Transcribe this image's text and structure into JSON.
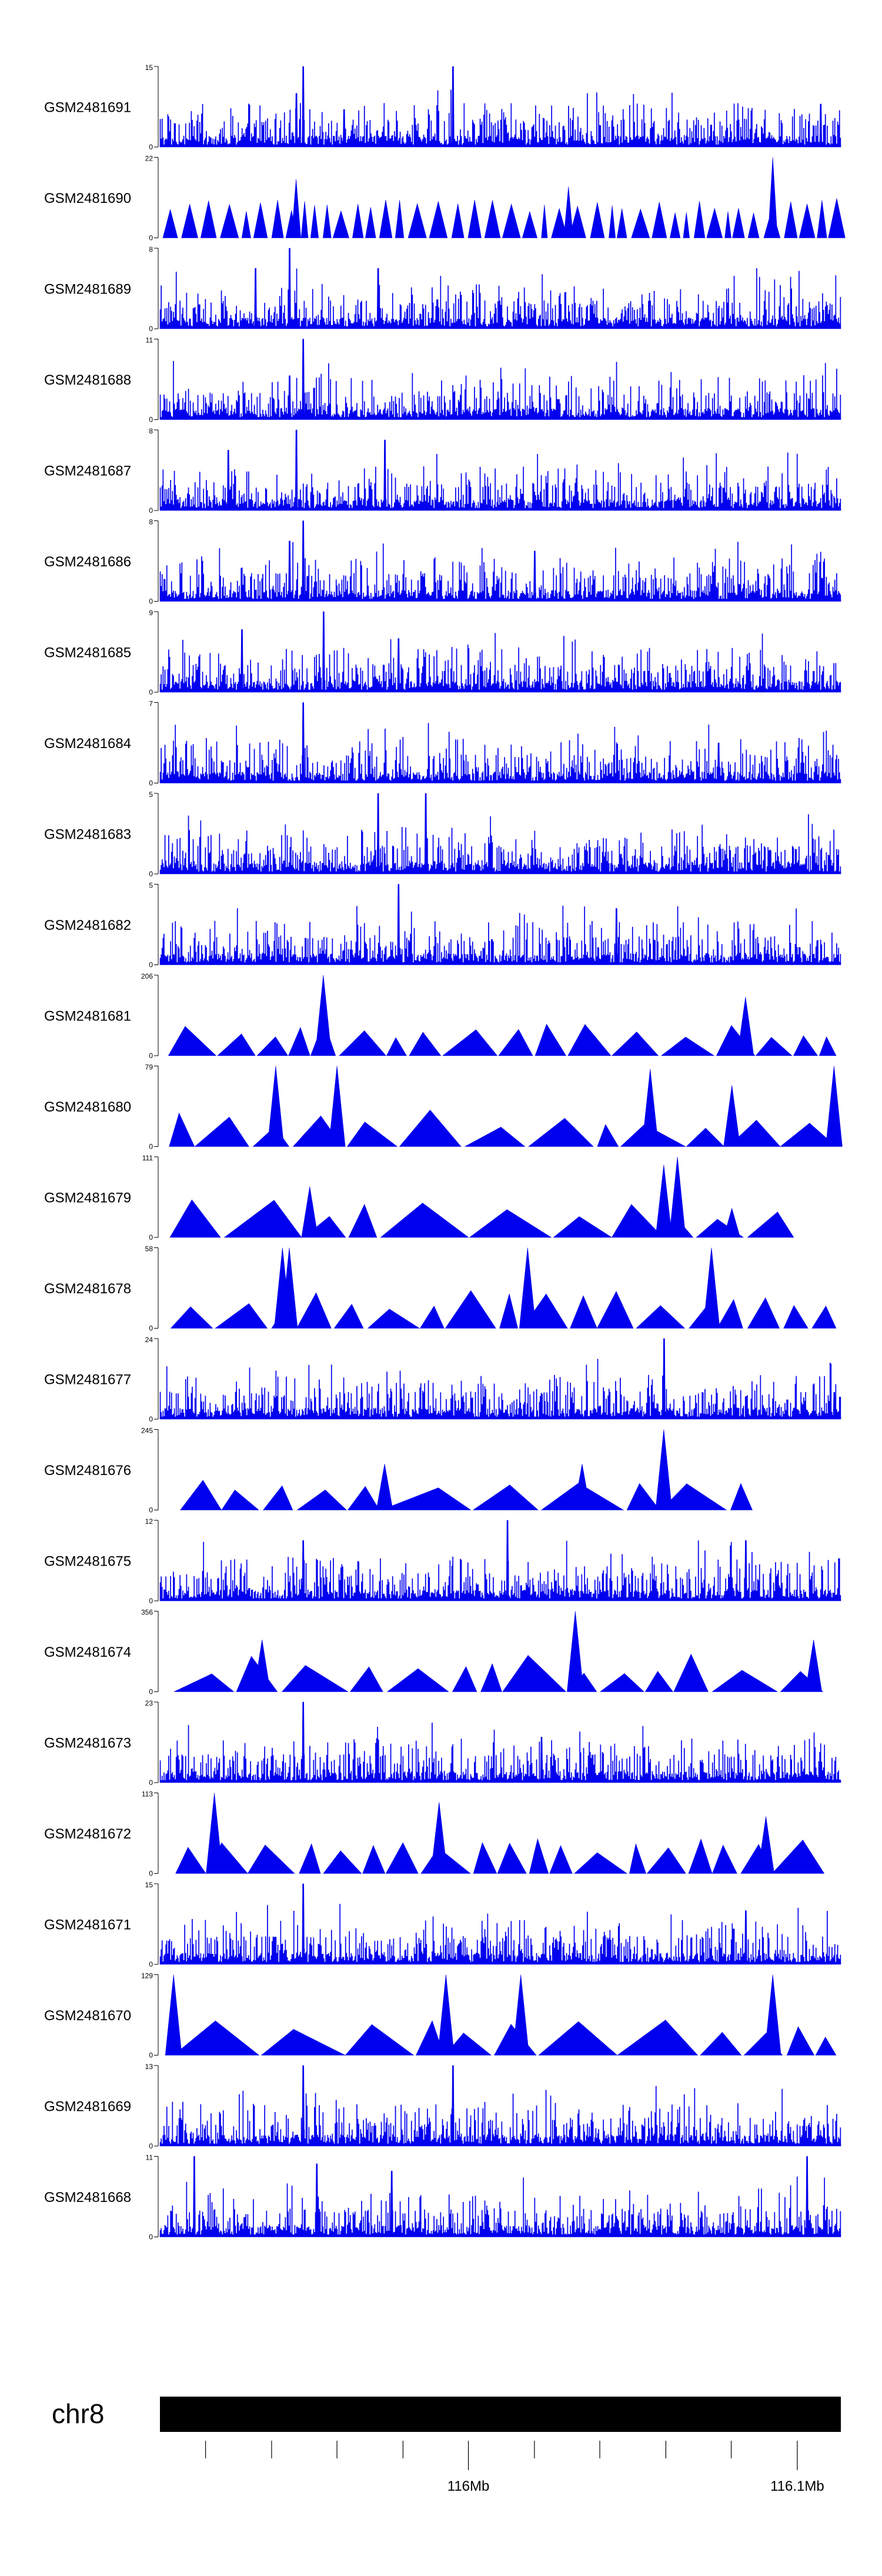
{
  "chart_data": {
    "type": "area",
    "description_of_view": "genome browser coverage tracks",
    "fill_color": "#0000EE",
    "axis_color": "#000000",
    "tracks": [
      {
        "name": "GSM2481691",
        "ymax_label": "15",
        "ymin_label": "0",
        "ymax": 15,
        "style": "dense",
        "peaks": [
          [
            0.21,
            15
          ],
          [
            0.2,
            10
          ],
          [
            0.43,
            15
          ],
          [
            0.27,
            7
          ],
          [
            0.97,
            8
          ]
        ]
      },
      {
        "name": "GSM2481690",
        "ymax_label": "22",
        "ymin_label": "0",
        "ymax": 22,
        "style": "spiky",
        "peaks": [
          [
            0.9,
            22
          ],
          [
            0.2,
            16
          ],
          [
            0.6,
            14
          ]
        ]
      },
      {
        "name": "GSM2481689",
        "ymax_label": "8",
        "ymin_label": "0",
        "ymax": 8,
        "style": "dense",
        "peaks": [
          [
            0.19,
            8
          ],
          [
            0.14,
            6
          ],
          [
            0.32,
            6
          ]
        ]
      },
      {
        "name": "GSM2481688",
        "ymax_label": "11",
        "ymin_label": "0",
        "ymax": 11,
        "style": "dense",
        "peaks": [
          [
            0.21,
            11
          ],
          [
            0.19,
            6
          ]
        ]
      },
      {
        "name": "GSM2481687",
        "ymax_label": "8",
        "ymin_label": "0",
        "ymax": 8,
        "style": "dense",
        "peaks": [
          [
            0.2,
            8
          ],
          [
            0.33,
            7
          ],
          [
            0.1,
            6
          ]
        ]
      },
      {
        "name": "GSM2481686",
        "ymax_label": "8",
        "ymin_label": "0",
        "ymax": 8,
        "style": "dense",
        "peaks": [
          [
            0.21,
            8
          ],
          [
            0.19,
            6
          ],
          [
            0.55,
            5
          ]
        ]
      },
      {
        "name": "GSM2481685",
        "ymax_label": "9",
        "ymin_label": "0",
        "ymax": 9,
        "style": "dense",
        "peaks": [
          [
            0.24,
            9
          ],
          [
            0.12,
            7
          ],
          [
            0.35,
            6
          ]
        ]
      },
      {
        "name": "GSM2481684",
        "ymax_label": "7",
        "ymin_label": "0",
        "ymax": 7,
        "style": "dense",
        "peaks": [
          [
            0.21,
            7
          ],
          [
            0.82,
            3.5
          ]
        ]
      },
      {
        "name": "GSM2481683",
        "ymax_label": "5",
        "ymin_label": "0",
        "ymax": 5,
        "style": "dense",
        "peaks": [
          [
            0.32,
            5
          ],
          [
            0.39,
            5
          ]
        ]
      },
      {
        "name": "GSM2481682",
        "ymax_label": "5",
        "ymin_label": "0",
        "ymax": 5,
        "style": "dense",
        "peaks": [
          [
            0.35,
            5
          ],
          [
            0.67,
            3.5
          ]
        ]
      },
      {
        "name": "GSM2481681",
        "ymax_label": "206",
        "ymin_label": "0",
        "ymax": 206,
        "style": "triangles",
        "peaks": [
          [
            0.24,
            206
          ],
          [
            0.86,
            150
          ]
        ]
      },
      {
        "name": "GSM2481680",
        "ymax_label": "79",
        "ymin_label": "0",
        "ymax": 79,
        "style": "triangles",
        "peaks": [
          [
            0.17,
            79
          ],
          [
            0.26,
            79
          ],
          [
            0.99,
            79
          ],
          [
            0.72,
            76
          ],
          [
            0.84,
            60
          ]
        ]
      },
      {
        "name": "GSM2481679",
        "ymax_label": "111",
        "ymin_label": "0",
        "ymax": 111,
        "style": "triangles",
        "peaks": [
          [
            0.76,
            111
          ],
          [
            0.74,
            100
          ],
          [
            0.22,
            70
          ],
          [
            0.84,
            40
          ]
        ]
      },
      {
        "name": "GSM2481678",
        "ymax_label": "58",
        "ymin_label": "0",
        "ymax": 58,
        "style": "triangles",
        "peaks": [
          [
            0.18,
            58
          ],
          [
            0.19,
            58
          ],
          [
            0.54,
            58
          ],
          [
            0.81,
            58
          ]
        ]
      },
      {
        "name": "GSM2481677",
        "ymax_label": "24",
        "ymin_label": "0",
        "ymax": 24,
        "style": "dense",
        "peaks": [
          [
            0.74,
            24
          ],
          [
            0.99,
            8
          ]
        ]
      },
      {
        "name": "GSM2481676",
        "ymax_label": "245",
        "ymin_label": "0",
        "ymax": 245,
        "style": "triangles",
        "peaks": [
          [
            0.74,
            245
          ],
          [
            0.33,
            140
          ],
          [
            0.62,
            140
          ]
        ]
      },
      {
        "name": "GSM2481675",
        "ymax_label": "12",
        "ymin_label": "0",
        "ymax": 12,
        "style": "dense",
        "peaks": [
          [
            0.51,
            12
          ],
          [
            0.21,
            9
          ],
          [
            0.86,
            9
          ]
        ]
      },
      {
        "name": "GSM2481674",
        "ymax_label": "356",
        "ymin_label": "0",
        "ymax": 356,
        "style": "triangles",
        "peaks": [
          [
            0.61,
            356
          ],
          [
            0.15,
            230
          ],
          [
            0.96,
            230
          ]
        ]
      },
      {
        "name": "GSM2481673",
        "ymax_label": "23",
        "ymin_label": "0",
        "ymax": 23,
        "style": "dense",
        "peaks": [
          [
            0.21,
            23
          ],
          [
            0.56,
            13
          ]
        ]
      },
      {
        "name": "GSM2481672",
        "ymax_label": "113",
        "ymin_label": "0",
        "ymax": 113,
        "style": "triangles",
        "peaks": [
          [
            0.08,
            113
          ],
          [
            0.41,
            100
          ],
          [
            0.89,
            80
          ]
        ]
      },
      {
        "name": "GSM2481671",
        "ymax_label": "15",
        "ymin_label": "0",
        "ymax": 15,
        "style": "dense",
        "peaks": [
          [
            0.21,
            15
          ],
          [
            0.86,
            10
          ]
        ]
      },
      {
        "name": "GSM2481670",
        "ymax_label": "129",
        "ymin_label": "0",
        "ymax": 129,
        "style": "triangles",
        "peaks": [
          [
            0.02,
            129
          ],
          [
            0.42,
            129
          ],
          [
            0.53,
            129
          ],
          [
            0.9,
            129
          ]
        ]
      },
      {
        "name": "GSM2481669",
        "ymax_label": "13",
        "ymin_label": "0",
        "ymax": 13,
        "style": "dense",
        "peaks": [
          [
            0.21,
            13
          ],
          [
            0.43,
            13
          ]
        ]
      },
      {
        "name": "GSM2481668",
        "ymax_label": "11",
        "ymin_label": "0",
        "ymax": 11,
        "style": "dense",
        "peaks": [
          [
            0.05,
            11
          ],
          [
            0.95,
            11
          ],
          [
            0.23,
            10
          ],
          [
            0.34,
            9
          ]
        ]
      }
    ],
    "chromosome": {
      "label": "chr8",
      "ticks": [
        {
          "pos": 0.067,
          "label": ""
        },
        {
          "pos": 0.164,
          "label": ""
        },
        {
          "pos": 0.26,
          "label": ""
        },
        {
          "pos": 0.357,
          "label": ""
        },
        {
          "pos": 0.453,
          "label": "116Mb"
        },
        {
          "pos": 0.55,
          "label": ""
        },
        {
          "pos": 0.646,
          "label": ""
        },
        {
          "pos": 0.743,
          "label": ""
        },
        {
          "pos": 0.839,
          "label": ""
        },
        {
          "pos": 0.936,
          "label": "116.1Mb"
        }
      ]
    }
  }
}
